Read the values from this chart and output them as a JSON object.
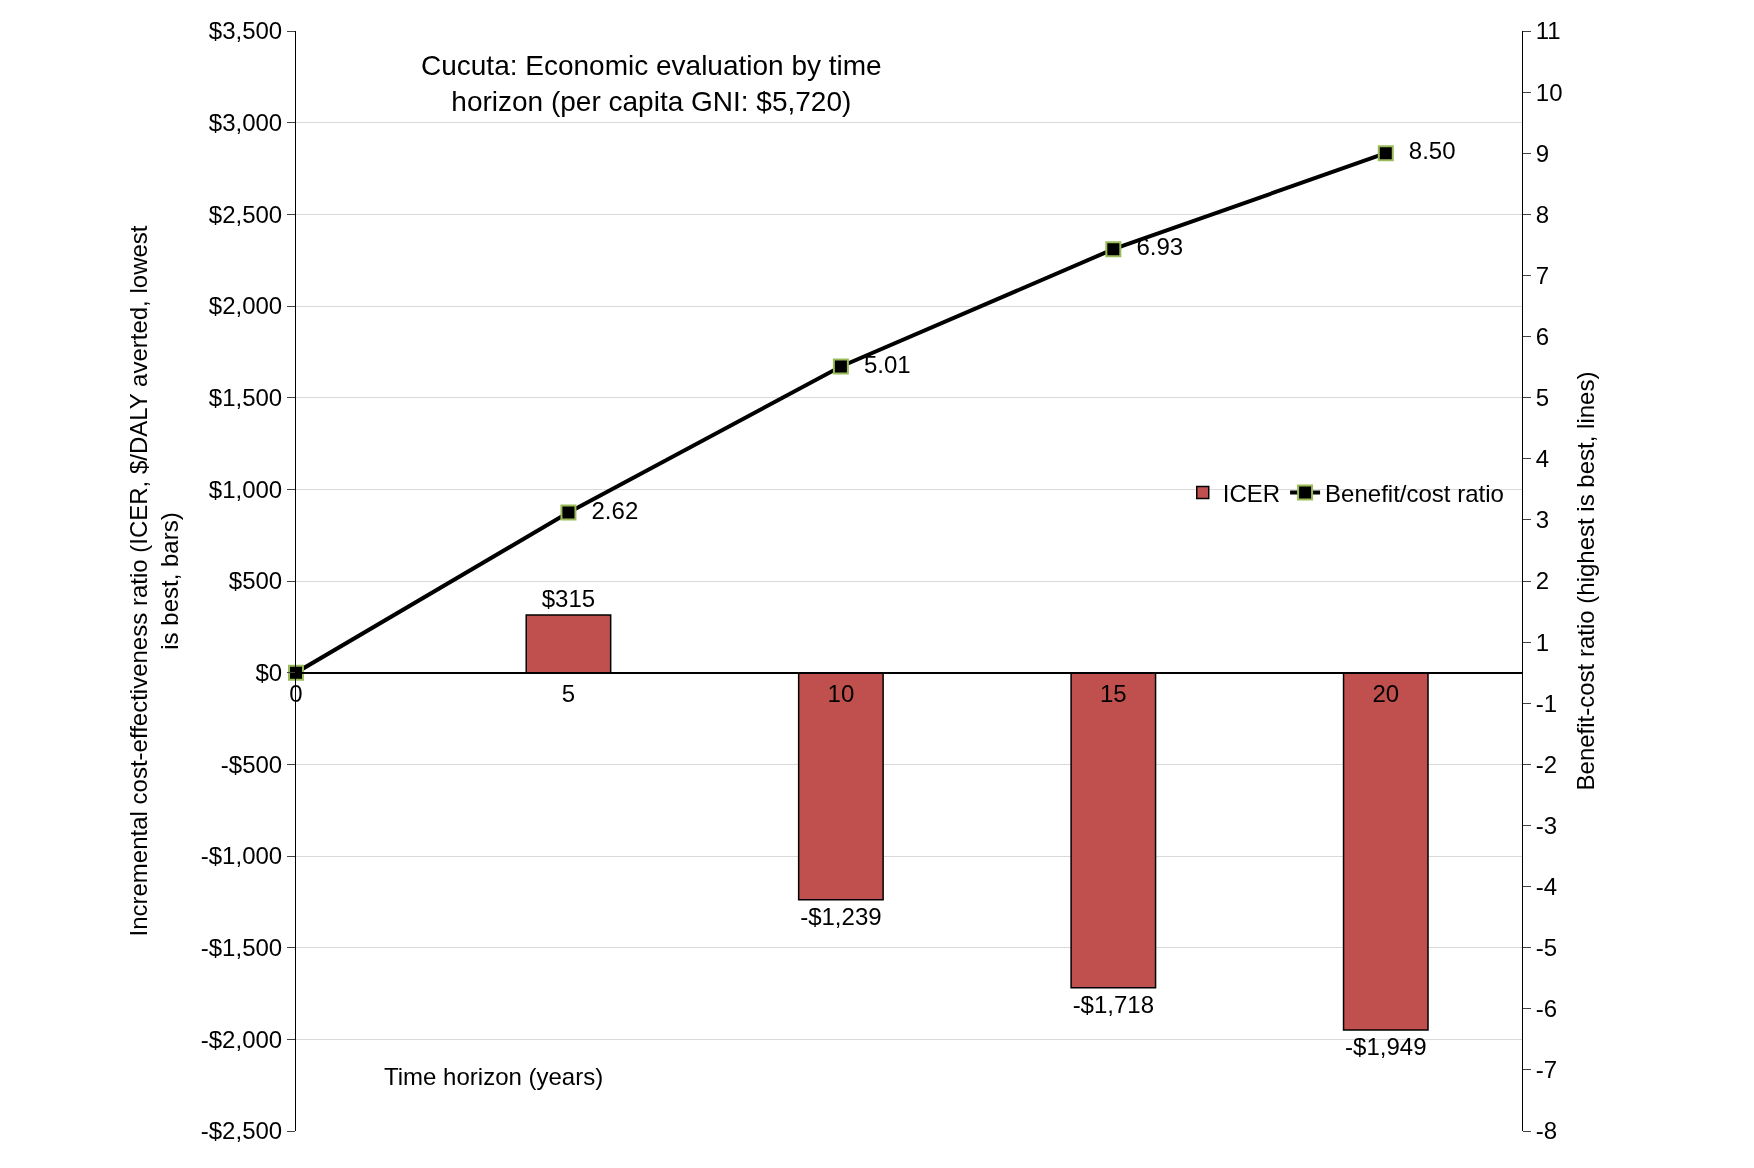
{
  "chart_data": {
    "type": "bar",
    "title": "Cucuta: Economic evaluation by time horizon (per capita GNI: $5,720)",
    "xlabel": "Time horizon (years)",
    "ylabel": "Incremental cost-effectiveness ratio (ICER, $/DALY averted, lowest is best, bars)",
    "y2label": "Benefit-cost ratio (highest is best, lines)",
    "categories": [
      "0",
      "5",
      "10",
      "15",
      "20"
    ],
    "series": [
      {
        "name": "ICER",
        "color": "#c0504d",
        "values": [
          null,
          315,
          -1239,
          -1718,
          -1949
        ],
        "value_labels": [
          null,
          "$315",
          "-$1,239",
          "-$1,718",
          "-$1,949"
        ]
      },
      {
        "name": "Benefit/cost ratio",
        "type": "line",
        "axis": "y2",
        "color": "#000000",
        "values": [
          0,
          2.62,
          5.01,
          6.93,
          8.5
        ],
        "value_labels": [
          null,
          "2.62",
          "5.01",
          "6.93",
          "8.50"
        ]
      }
    ],
    "ylim": [
      -2500,
      3500
    ],
    "yticks": [
      {
        "value": -2500,
        "label": "-$2,500"
      },
      {
        "value": -2000,
        "label": "-$2,000"
      },
      {
        "value": -1500,
        "label": "-$1,500"
      },
      {
        "value": -1000,
        "label": "-$1,000"
      },
      {
        "value": -500,
        "label": "-$500"
      },
      {
        "value": 0,
        "label": "$0"
      },
      {
        "value": 500,
        "label": "$500"
      },
      {
        "value": 1000,
        "label": "$1,000"
      },
      {
        "value": 1500,
        "label": "$1,500"
      },
      {
        "value": 2000,
        "label": "$2,000"
      },
      {
        "value": 2500,
        "label": "$2,500"
      },
      {
        "value": 3000,
        "label": "$3,000"
      },
      {
        "value": 3500,
        "label": "$3,500"
      }
    ],
    "y2lim": [
      -7.5,
      10.5
    ],
    "y2ticks": [
      {
        "value": -7.5,
        "label": "-8"
      },
      {
        "value": -6.5,
        "label": "-7"
      },
      {
        "value": -5.5,
        "label": "-6"
      },
      {
        "value": -4.5,
        "label": "-5"
      },
      {
        "value": -3.5,
        "label": "-4"
      },
      {
        "value": -2.5,
        "label": "-3"
      },
      {
        "value": -1.5,
        "label": "-2"
      },
      {
        "value": -0.5,
        "label": "-1"
      },
      {
        "value": 0.5,
        "label": "1"
      },
      {
        "value": 1.5,
        "label": "2"
      },
      {
        "value": 2.5,
        "label": "3"
      },
      {
        "value": 3.5,
        "label": "4"
      },
      {
        "value": 4.5,
        "label": "5"
      },
      {
        "value": 5.5,
        "label": "6"
      },
      {
        "value": 6.5,
        "label": "7"
      },
      {
        "value": 7.5,
        "label": "8"
      },
      {
        "value": 8.5,
        "label": "9"
      },
      {
        "value": 9.5,
        "label": "10"
      },
      {
        "value": 10.5,
        "label": "11"
      }
    ],
    "grid": "y",
    "legend": "right",
    "marker": "square",
    "line_style": "solid"
  }
}
